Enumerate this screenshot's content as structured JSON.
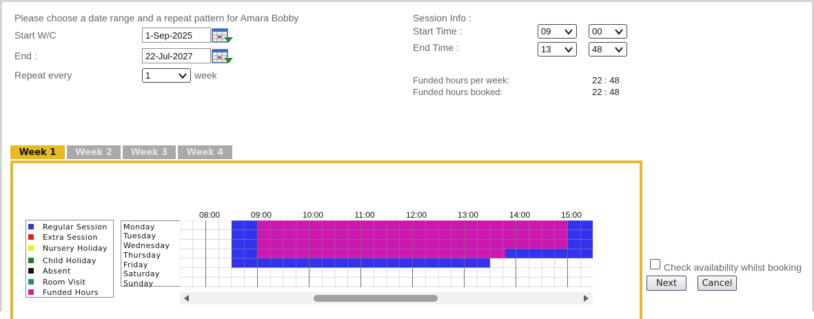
{
  "header": {
    "instruction": "Please choose a date range and a repeat pattern for Amara Bobby"
  },
  "form": {
    "start_label": "Start W/C",
    "start_value": "1-Sep-2025",
    "end_label": "End :",
    "end_value": "22-Jul-2027",
    "repeat_label": "Repeat every",
    "repeat_value": "1",
    "repeat_unit": "week",
    "calendar_icon": "calendar-icon"
  },
  "session": {
    "title": "Session Info :",
    "start_label": "Start Time :",
    "start_hour": "09",
    "start_min": "00",
    "end_label": "End Time :",
    "end_hour": "13",
    "end_min": "48",
    "funded_week_label": "Funded hours per week:",
    "funded_week_value": "22 : 48",
    "funded_booked_label": "Funded hours booked:",
    "funded_booked_value": "22 : 48"
  },
  "tabs": [
    {
      "label": "Week 1",
      "active": true
    },
    {
      "label": "Week 2",
      "active": false
    },
    {
      "label": "Week 3",
      "active": false
    },
    {
      "label": "Week 4",
      "active": false
    }
  ],
  "legend": [
    {
      "label": "Regular Session",
      "color": "#3a3aa8"
    },
    {
      "label": "Extra Session",
      "color": "#e02020"
    },
    {
      "label": "Nursery Holiday",
      "color": "#f0f020"
    },
    {
      "label": "Child Holiday",
      "color": "#208020"
    },
    {
      "label": "Absent",
      "color": "#111111"
    },
    {
      "label": "Room Visit",
      "color": "#208888"
    },
    {
      "label": "Funded Hours",
      "color": "#d020a0"
    }
  ],
  "schedule": {
    "hours": [
      "08:00",
      "09:00",
      "10:00",
      "11:00",
      "12:00",
      "13:00",
      "14:00",
      "15:00"
    ],
    "days": [
      "Monday",
      "Tuesday",
      "Wednesday",
      "Thursday",
      "Friday",
      "Saturday",
      "Sunday"
    ],
    "colors": {
      "regular": "#3333ee",
      "funded": "#cc18b0",
      "empty": "#ffffff",
      "grid": "#9a9a9a"
    },
    "bookings": [
      {
        "day": "Monday",
        "regular": [
          "08:30",
          "16:00"
        ],
        "funded": [
          "09:00",
          "15:00"
        ]
      },
      {
        "day": "Tuesday",
        "regular": [
          "08:30",
          "16:00"
        ],
        "funded": [
          "09:00",
          "15:00"
        ]
      },
      {
        "day": "Wednesday",
        "regular": [
          "08:30",
          "16:00"
        ],
        "funded": [
          "09:00",
          "15:00"
        ]
      },
      {
        "day": "Thursday",
        "regular": [
          "08:30",
          "16:00"
        ],
        "funded": [
          "09:00",
          "13:48"
        ]
      },
      {
        "day": "Friday",
        "regular": [
          "08:30",
          "13:30"
        ],
        "funded": null
      },
      {
        "day": "Saturday",
        "regular": null,
        "funded": null
      },
      {
        "day": "Sunday",
        "regular": null,
        "funded": null
      }
    ]
  },
  "actions": {
    "check_label": "Check availability whilst booking",
    "check_checked": false,
    "next_label": "Next",
    "cancel_label": "Cancel"
  }
}
